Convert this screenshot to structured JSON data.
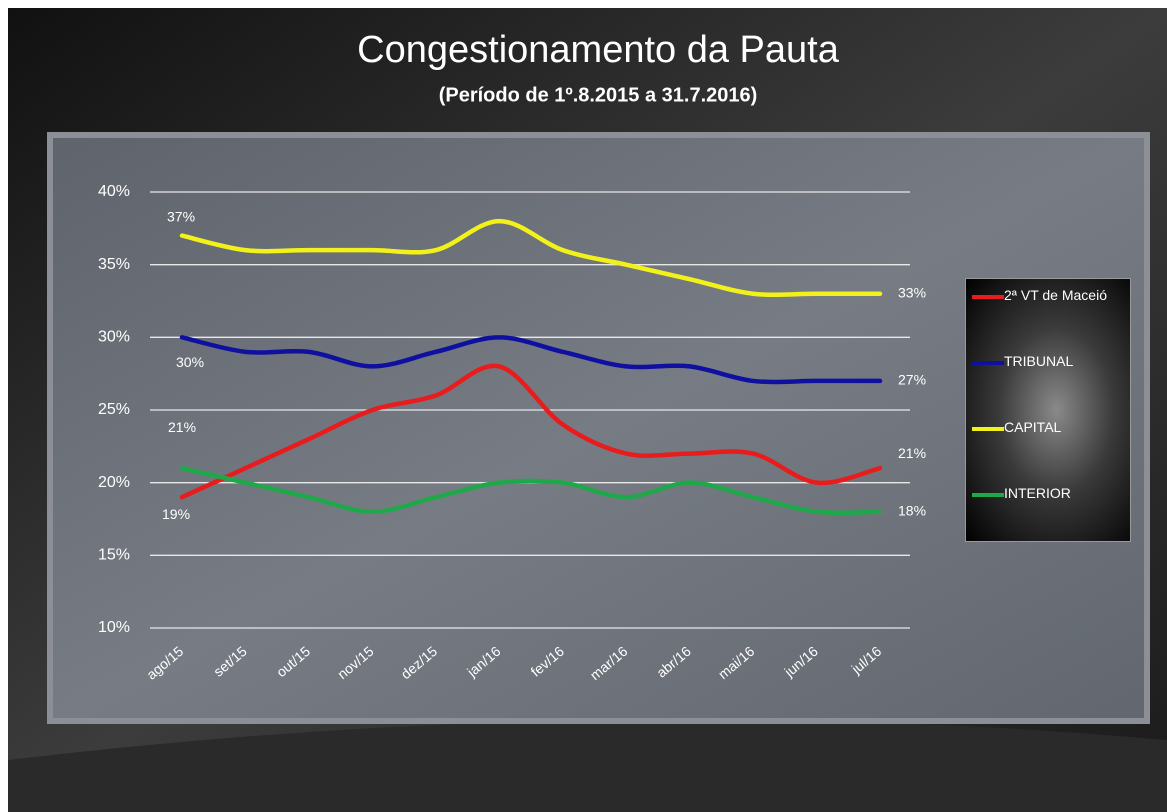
{
  "chart_data": {
    "type": "line",
    "title": "Congestionamento da Pauta",
    "subtitle": "(Período de 1º.8.2015  a  31.7.2016)",
    "categories": [
      "ago/15",
      "set/15",
      "out/15",
      "nov/15",
      "dez/15",
      "jan/16",
      "fev/16",
      "mar/16",
      "abr/16",
      "mai/16",
      "jun/16",
      "jul/16"
    ],
    "series": [
      {
        "name": "2ª VT de Maceió",
        "color": "#e81c1c",
        "values": [
          19,
          21,
          23,
          25,
          26,
          28,
          24,
          22,
          22,
          22,
          20,
          21
        ],
        "value_labels": [
          "19%",
          null,
          null,
          null,
          null,
          null,
          null,
          null,
          null,
          null,
          null,
          "21%"
        ]
      },
      {
        "name": "TRIBUNAL",
        "color": "#1010a0",
        "values": [
          30,
          29,
          29,
          28,
          29,
          30,
          29,
          28,
          28,
          27,
          27,
          27
        ],
        "value_labels": [
          "30%",
          null,
          null,
          null,
          null,
          null,
          null,
          null,
          null,
          null,
          null,
          "27%"
        ]
      },
      {
        "name": "CAPITAL",
        "color": "#f2f21a",
        "values": [
          37,
          36,
          36,
          36,
          36,
          38,
          36,
          35,
          34,
          33,
          33,
          33
        ],
        "value_labels": [
          "37%",
          null,
          null,
          null,
          null,
          null,
          null,
          null,
          null,
          null,
          null,
          "33%"
        ]
      },
      {
        "name": "INTERIOR",
        "color": "#1fa84a",
        "values": [
          21,
          20,
          19,
          18,
          19,
          20,
          20,
          19,
          20,
          19,
          18,
          18
        ],
        "value_labels": [
          "21%",
          null,
          null,
          null,
          null,
          null,
          null,
          null,
          null,
          null,
          null,
          "18%"
        ]
      }
    ],
    "ylim": [
      10,
      40
    ],
    "yticks": [
      {
        "value": 10,
        "label": "10%"
      },
      {
        "value": 15,
        "label": "15%"
      },
      {
        "value": 20,
        "label": "20%"
      },
      {
        "value": 25,
        "label": "25%"
      },
      {
        "value": 30,
        "label": "30%"
      },
      {
        "value": 35,
        "label": "35%"
      },
      {
        "value": 40,
        "label": "40%"
      }
    ],
    "grid": true,
    "legend": "right"
  }
}
